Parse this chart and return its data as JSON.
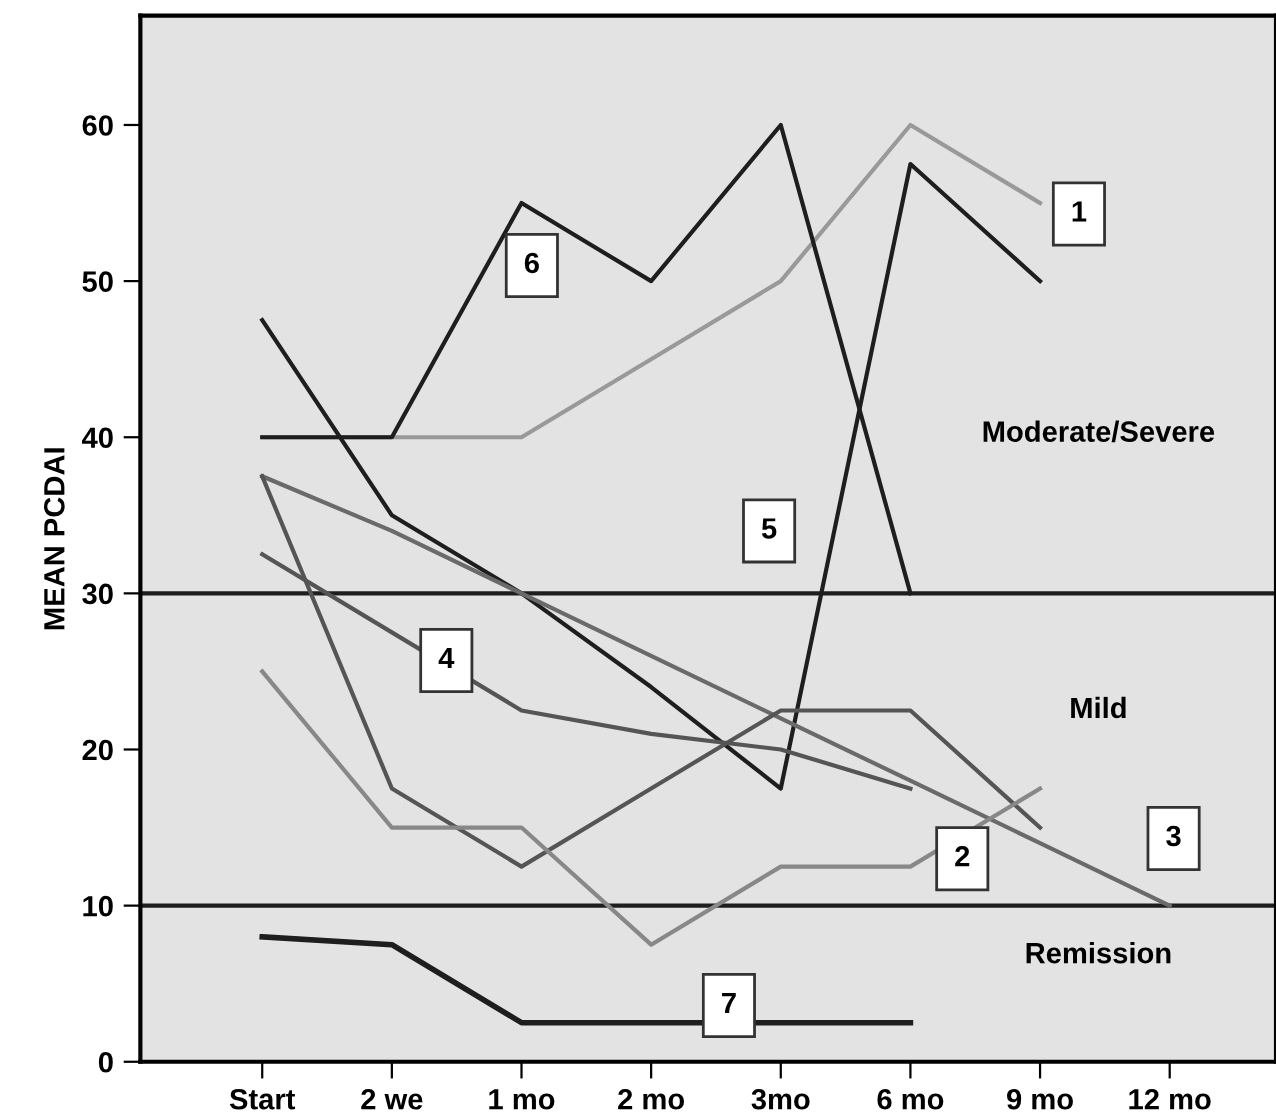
{
  "chart_data": {
    "type": "line",
    "ylabel": "MEAN PCDAI",
    "categories": [
      "Start",
      "2 we",
      "1 mo",
      "2 mo",
      "3mo",
      "6 mo",
      "9 mo",
      "12 mo"
    ],
    "ylim": [
      0,
      67
    ],
    "yticks": [
      0,
      10,
      20,
      30,
      40,
      50,
      60
    ],
    "grid": false,
    "legend": false,
    "marker": "none",
    "line_style": "solid",
    "series": [
      {
        "color": "#999999",
        "values": [
          40,
          40,
          40,
          45,
          50,
          60,
          55,
          null
        ]
      },
      {
        "color": "#1e1e1e",
        "values": [
          40,
          40,
          55,
          50,
          60,
          30,
          null,
          null
        ]
      },
      {
        "color": "#1e1e1e",
        "values": [
          47.5,
          35,
          30,
          24,
          17.5,
          57.5,
          50,
          null
        ]
      },
      {
        "color": "#6a6a6a",
        "values": [
          37.5,
          34,
          30,
          26,
          22,
          18,
          14,
          10
        ]
      },
      {
        "color": "#555555",
        "values": [
          32.5,
          27.5,
          22.5,
          21,
          20,
          17.5,
          null,
          null
        ]
      },
      {
        "color": "#555555",
        "values": [
          37.5,
          17.5,
          12.5,
          17.5,
          22.5,
          22.5,
          15,
          null
        ]
      },
      {
        "color": "#888888",
        "values": [
          25,
          15,
          15,
          7.5,
          12.5,
          12.5,
          17.5,
          null
        ]
      },
      {
        "color": "#1e1e1e",
        "values": [
          8,
          7.5,
          2.5,
          2.5,
          2.5,
          2.5,
          null,
          null
        ]
      }
    ],
    "ref_lines": [
      {
        "axis": "y",
        "value": 10,
        "color": "#1e1e1e"
      },
      {
        "axis": "y",
        "value": 30,
        "color": "#1e1e1e"
      }
    ],
    "bands": [
      {
        "axis": "y",
        "from": 30,
        "to": 67,
        "label": "Moderate/Severe",
        "color": "#e3e3e3"
      },
      {
        "axis": "y",
        "from": 10,
        "to": 30,
        "label": "Mild",
        "color": "#e3e3e3"
      },
      {
        "axis": "y",
        "from": 0,
        "to": 10,
        "label": "Remission",
        "color": "#e3e3e3"
      }
    ],
    "annotations": [
      "1",
      "6",
      "5",
      "4",
      "2",
      "3",
      "7"
    ]
  }
}
